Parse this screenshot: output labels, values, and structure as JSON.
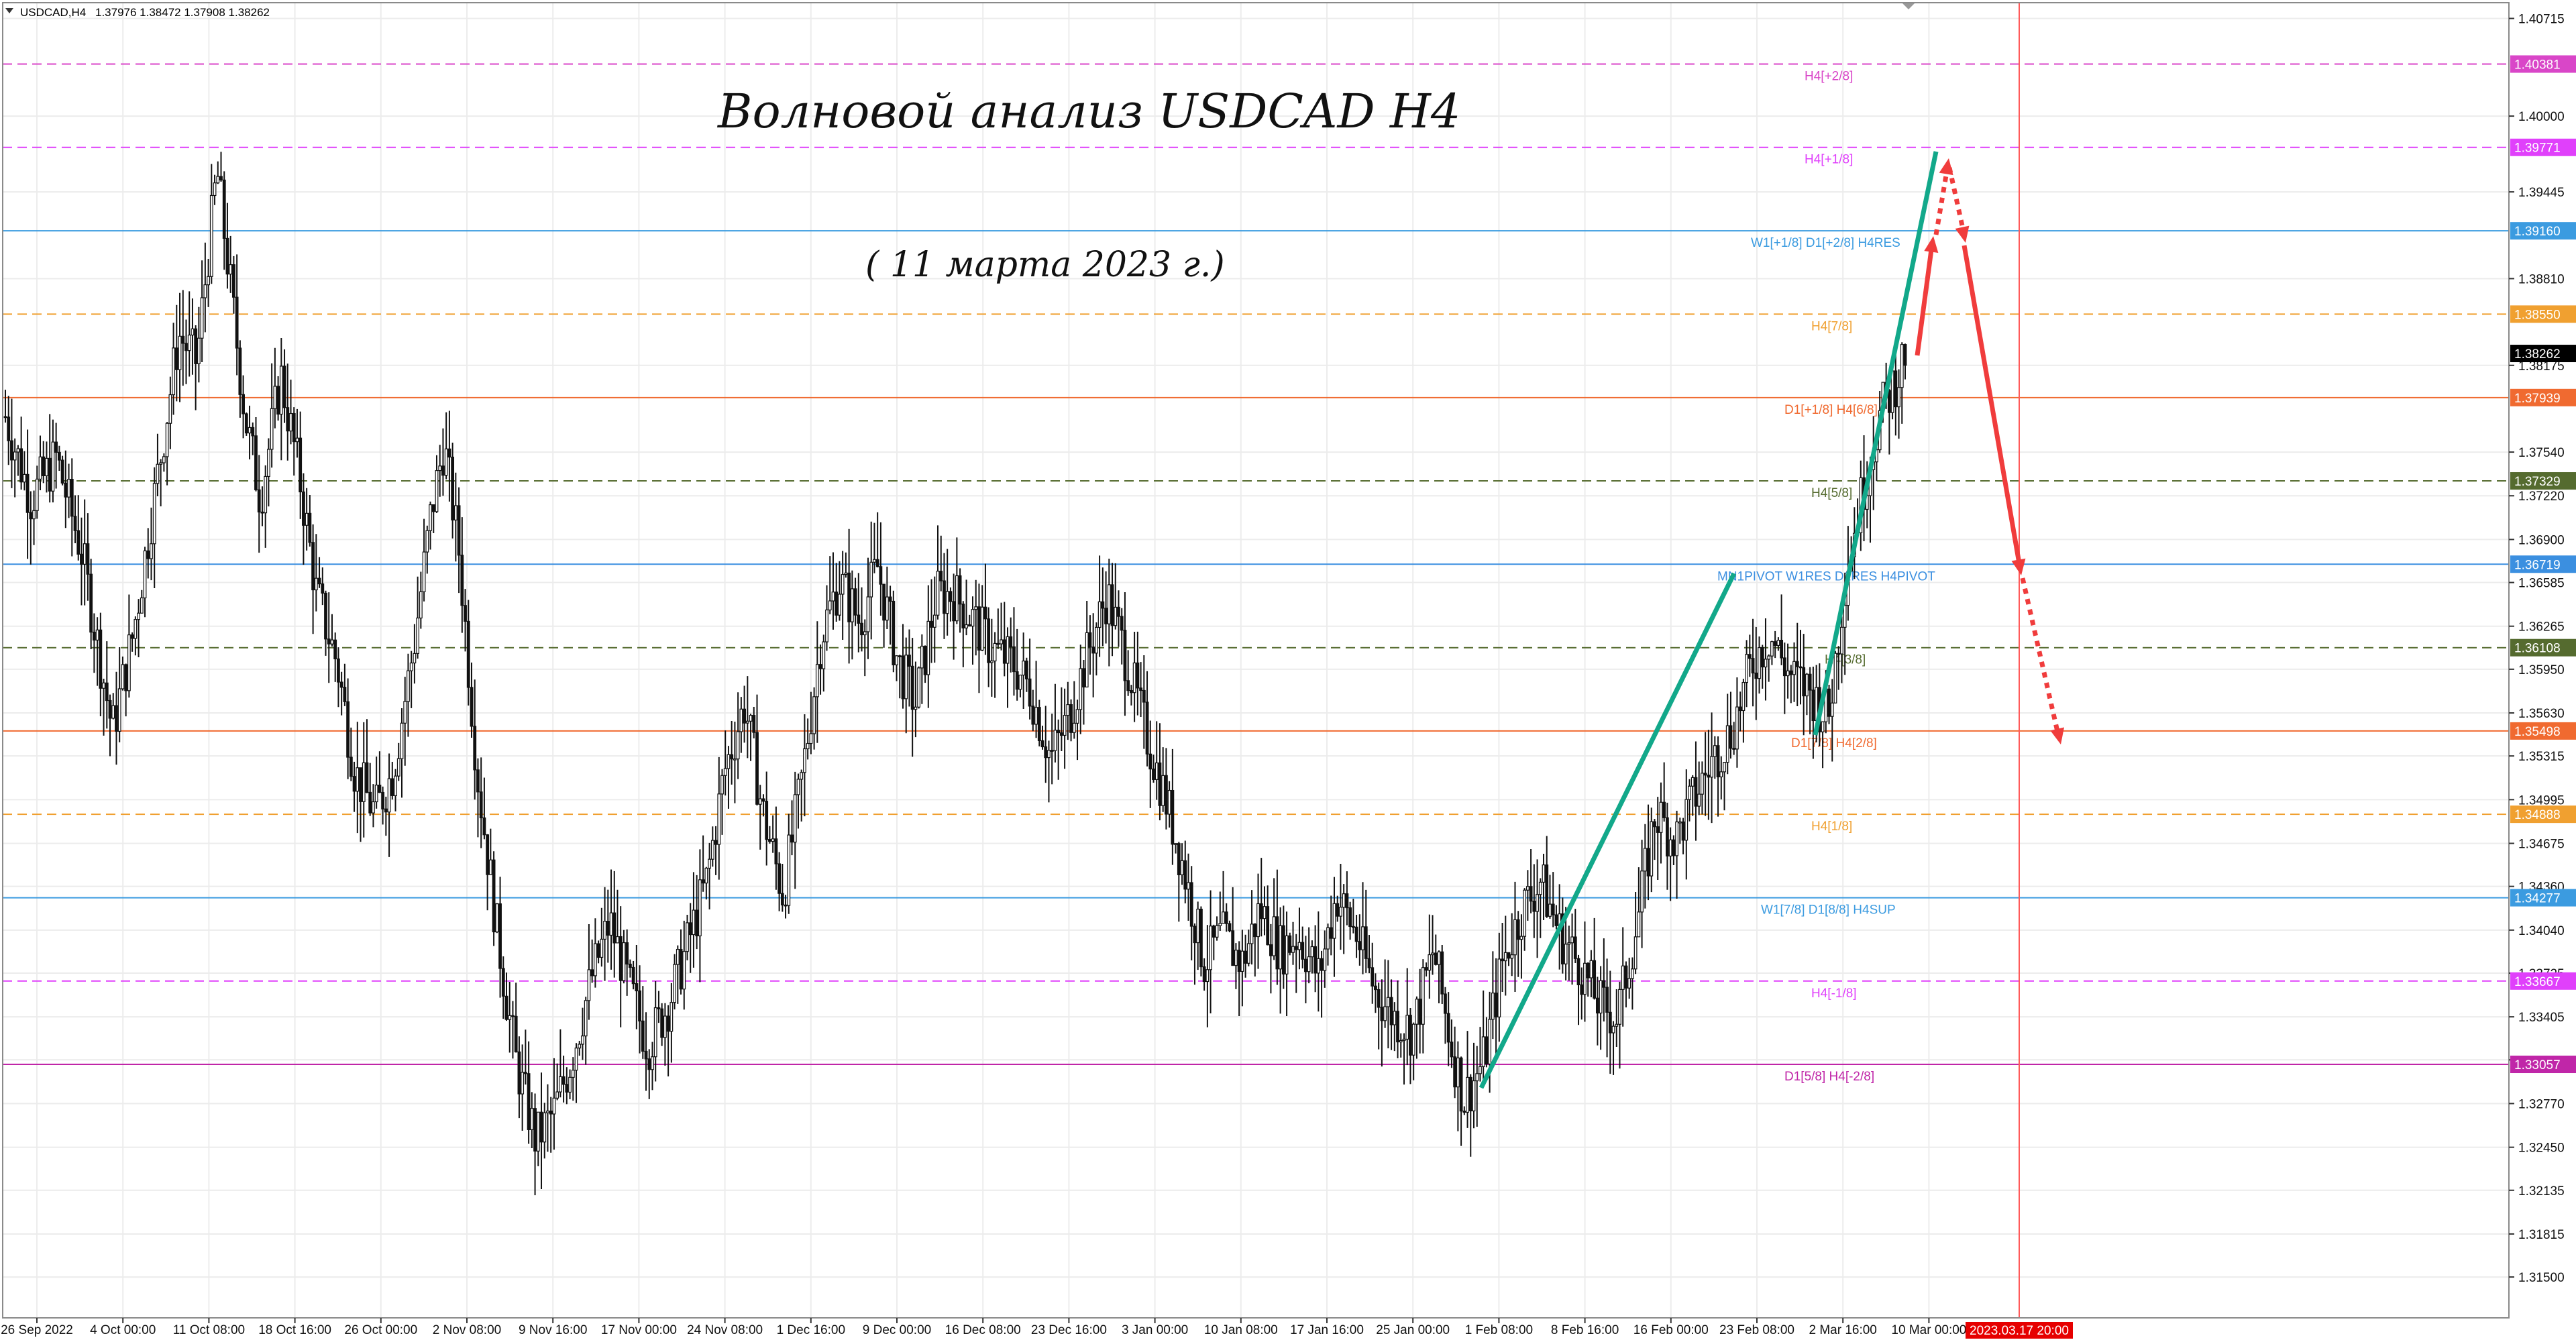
{
  "header": {
    "dropdown_icon": "triangle-down-icon",
    "symbol": "USDCAD,H4",
    "ohlc": "1.37976 1.38472 1.37908 1.38262"
  },
  "annotations": {
    "title": "Волновой анализ USDCAD H4",
    "date": "( 11 марта 2023 г.)"
  },
  "chart_data": {
    "type": "candlestick",
    "symbol": "USDCAD",
    "timeframe": "H4",
    "ylim": [
      1.3125,
      1.4085
    ],
    "price_ticks": [
      "1.40715",
      "1.40000",
      "1.39445",
      "1.38810",
      "1.38175",
      "1.37540",
      "1.37220",
      "1.36900",
      "1.36585",
      "1.36265",
      "1.35950",
      "1.35630",
      "1.35315",
      "1.34995",
      "1.34675",
      "1.34360",
      "1.34040",
      "1.33725",
      "1.33405",
      "1.33090",
      "1.32770",
      "1.32450",
      "1.32135",
      "1.31815",
      "1.31500"
    ],
    "time_labels": [
      "26 Sep 2022",
      "4 Oct 00:00",
      "11 Oct 08:00",
      "18 Oct 16:00",
      "26 Oct 00:00",
      "2 Nov 08:00",
      "9 Nov 16:00",
      "17 Nov 00:00",
      "24 Nov 08:00",
      "1 Dec 16:00",
      "9 Dec 00:00",
      "16 Dec 08:00",
      "23 Dec 16:00",
      "3 Jan 00:00",
      "10 Jan 08:00",
      "17 Jan 16:00",
      "25 Jan 00:00",
      "1 Feb 08:00",
      "8 Feb 16:00",
      "16 Feb 00:00",
      "23 Feb 08:00",
      "2 Mar 16:00",
      "10 Mar 00:00"
    ],
    "future_time_label": "2023.03.17 20:00",
    "current_price": "1.38262",
    "current_price_value": 1.38262,
    "levels": [
      {
        "value": 1.40381,
        "label": "1.40381",
        "text": "H4[+2/8]",
        "color": "#d946c8",
        "style": "dash"
      },
      {
        "value": 1.39771,
        "label": "1.39771",
        "text": "H4[+1/8]",
        "color": "#e040fb",
        "style": "dash"
      },
      {
        "value": 1.3916,
        "label": "1.39160",
        "text": "W1[+1/8] D1[+2/8] H4RES",
        "color": "#3b9be0",
        "style": "solid"
      },
      {
        "value": 1.3855,
        "label": "1.38550",
        "text": "H4[7/8]",
        "color": "#f0a030",
        "style": "dash"
      },
      {
        "value": 1.37939,
        "label": "1.37939",
        "text": "D1[+1/8] H4[6/8]",
        "color": "#f06a30",
        "style": "solid"
      },
      {
        "value": 1.37329,
        "label": "1.37329",
        "text": "H4[5/8]",
        "color": "#556b2f",
        "style": "dash"
      },
      {
        "value": 1.36719,
        "label": "1.36719",
        "text": "MN1PIVOT W1RES D1RES H4PIVOT",
        "color": "#3b8fe0",
        "style": "solid"
      },
      {
        "value": 1.36108,
        "label": "1.36108",
        "text": "H4[3/8]",
        "color": "#556b2f",
        "style": "dash"
      },
      {
        "value": 1.35498,
        "label": "1.35498",
        "text": "D1[7/8] H4[2/8]",
        "color": "#f06a30",
        "style": "solid"
      },
      {
        "value": 1.34888,
        "label": "1.34888",
        "text": "H4[1/8]",
        "color": "#f0a030",
        "style": "dash"
      },
      {
        "value": 1.34277,
        "label": "1.34277",
        "text": "W1[7/8] D1[8/8] H4SUP",
        "color": "#3b9be0",
        "style": "solid"
      },
      {
        "value": 1.33667,
        "label": "1.33667",
        "text": "H4[-1/8]",
        "color": "#e040fb",
        "style": "dash"
      },
      {
        "value": 1.33057,
        "label": "1.33057",
        "text": "D1[5/8] H4[-2/8]",
        "color": "#c026a8",
        "style": "solid"
      }
    ],
    "price_path": [
      [
        0,
        1.378
      ],
      [
        0.01,
        1.372
      ],
      [
        0.02,
        1.375
      ],
      [
        0.03,
        1.368
      ],
      [
        0.042,
        1.355
      ],
      [
        0.05,
        1.362
      ],
      [
        0.06,
        1.374
      ],
      [
        0.068,
        1.384
      ],
      [
        0.075,
        1.382
      ],
      [
        0.083,
        1.396
      ],
      [
        0.088,
        1.388
      ],
      [
        0.094,
        1.378
      ],
      [
        0.1,
        1.372
      ],
      [
        0.108,
        1.381
      ],
      [
        0.115,
        1.374
      ],
      [
        0.122,
        1.365
      ],
      [
        0.13,
        1.36
      ],
      [
        0.137,
        1.352
      ],
      [
        0.145,
        1.349
      ],
      [
        0.152,
        1.352
      ],
      [
        0.16,
        1.361
      ],
      [
        0.167,
        1.371
      ],
      [
        0.172,
        1.376
      ],
      [
        0.178,
        1.368
      ],
      [
        0.185,
        1.352
      ],
      [
        0.193,
        1.34
      ],
      [
        0.2,
        1.331
      ],
      [
        0.208,
        1.325
      ],
      [
        0.215,
        1.327
      ],
      [
        0.222,
        1.331
      ],
      [
        0.23,
        1.337
      ],
      [
        0.237,
        1.341
      ],
      [
        0.245,
        1.336
      ],
      [
        0.252,
        1.332
      ],
      [
        0.26,
        1.335
      ],
      [
        0.267,
        1.339
      ],
      [
        0.275,
        1.344
      ],
      [
        0.282,
        1.352
      ],
      [
        0.29,
        1.357
      ],
      [
        0.297,
        1.349
      ],
      [
        0.305,
        1.343
      ],
      [
        0.312,
        1.351
      ],
      [
        0.32,
        1.362
      ],
      [
        0.327,
        1.366
      ],
      [
        0.335,
        1.363
      ],
      [
        0.342,
        1.367
      ],
      [
        0.35,
        1.36
      ],
      [
        0.357,
        1.357
      ],
      [
        0.365,
        1.365
      ],
      [
        0.372,
        1.365
      ],
      [
        0.38,
        1.363
      ],
      [
        0.387,
        1.361
      ],
      [
        0.395,
        1.36
      ],
      [
        0.402,
        1.358
      ],
      [
        0.41,
        1.353
      ],
      [
        0.417,
        1.356
      ],
      [
        0.425,
        1.361
      ],
      [
        0.432,
        1.365
      ],
      [
        0.44,
        1.36
      ],
      [
        0.447,
        1.355
      ],
      [
        0.455,
        1.35
      ],
      [
        0.462,
        1.345
      ],
      [
        0.47,
        1.338
      ],
      [
        0.477,
        1.34
      ],
      [
        0.485,
        1.338
      ],
      [
        0.492,
        1.342
      ],
      [
        0.5,
        1.339
      ],
      [
        0.507,
        1.34
      ],
      [
        0.515,
        1.337
      ],
      [
        0.522,
        1.343
      ],
      [
        0.53,
        1.34
      ],
      [
        0.537,
        1.336
      ],
      [
        0.545,
        1.334
      ],
      [
        0.552,
        1.333
      ],
      [
        0.56,
        1.339
      ],
      [
        0.567,
        1.332
      ],
      [
        0.572,
        1.328
      ],
      [
        0.58,
        1.331
      ],
      [
        0.587,
        1.338
      ],
      [
        0.595,
        1.342
      ],
      [
        0.602,
        1.344
      ],
      [
        0.61,
        1.34
      ],
      [
        0.617,
        1.338
      ],
      [
        0.625,
        1.335
      ],
      [
        0.632,
        1.334
      ],
      [
        0.64,
        1.341
      ],
      [
        0.647,
        1.349
      ],
      [
        0.655,
        1.347
      ],
      [
        0.662,
        1.35
      ],
      [
        0.67,
        1.353
      ],
      [
        0.677,
        1.355
      ],
      [
        0.685,
        1.36
      ],
      [
        0.692,
        1.362
      ],
      [
        0.7,
        1.359
      ],
      [
        0.707,
        1.358
      ],
      [
        0.715,
        1.356
      ],
      [
        0.722,
        1.367
      ],
      [
        0.73,
        1.374
      ],
      [
        0.735,
        1.378
      ],
      [
        0.742,
        1.381
      ],
      [
        0.745,
        1.3826
      ]
    ]
  }
}
